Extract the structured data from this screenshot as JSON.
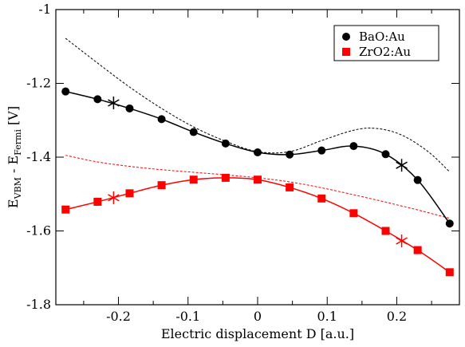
{
  "chart_data": {
    "type": "line",
    "title": "",
    "xlabel": "Electric displacement D [a.u.]",
    "ylabel": {
      "parts": [
        {
          "text": "E",
          "sub": false
        },
        {
          "text": "VBM",
          "sub": true
        },
        {
          "text": " - E",
          "sub": false
        },
        {
          "text": "Fermi",
          "sub": true
        },
        {
          "text": " [V]",
          "sub": false
        }
      ]
    },
    "xlim": [
      -0.29,
      0.29
    ],
    "ylim": [
      -1.8,
      -1.0
    ],
    "xticks": [
      {
        "value": -0.2,
        "label": "-0.2"
      },
      {
        "value": -0.1,
        "label": "-0.1"
      },
      {
        "value": 0,
        "label": "0"
      },
      {
        "value": 0.1,
        "label": "0.1"
      },
      {
        "value": 0.2,
        "label": "0.2"
      }
    ],
    "yticks": [
      {
        "value": -1.8,
        "label": "-1.8"
      },
      {
        "value": -1.6,
        "label": "-1.6"
      },
      {
        "value": -1.4,
        "label": "-1.4"
      },
      {
        "value": -1.2,
        "label": "-1.2"
      },
      {
        "value": -1.0,
        "label": "-1"
      }
    ],
    "grid": false,
    "legend_position": "top-right",
    "series": [
      {
        "name": "BaO:Au",
        "color": "#000000",
        "marker": "circle",
        "points": [
          [
            -0.276,
            -1.222
          ],
          [
            -0.23,
            -1.243
          ],
          [
            -0.184,
            -1.268
          ],
          [
            -0.138,
            -1.297
          ],
          [
            -0.092,
            -1.332
          ],
          [
            -0.046,
            -1.363
          ],
          [
            0.0,
            -1.387
          ],
          [
            0.046,
            -1.393
          ],
          [
            0.092,
            -1.382
          ],
          [
            0.138,
            -1.37
          ],
          [
            0.184,
            -1.392
          ],
          [
            0.23,
            -1.462
          ],
          [
            0.276,
            -1.58
          ]
        ],
        "star_points": [
          [
            -0.207,
            -1.253
          ],
          [
            0.207,
            -1.422
          ]
        ],
        "dashed_curve": [
          [
            -0.276,
            -1.078
          ],
          [
            -0.23,
            -1.145
          ],
          [
            -0.184,
            -1.21
          ],
          [
            -0.138,
            -1.268
          ],
          [
            -0.092,
            -1.318
          ],
          [
            -0.046,
            -1.357
          ],
          [
            0.0,
            -1.385
          ],
          [
            0.046,
            -1.385
          ],
          [
            0.092,
            -1.355
          ],
          [
            0.138,
            -1.327
          ],
          [
            0.17,
            -1.322
          ],
          [
            0.207,
            -1.34
          ],
          [
            0.245,
            -1.385
          ],
          [
            0.276,
            -1.44
          ]
        ]
      },
      {
        "name": "ZrO2:Au",
        "color": "#ff0000",
        "marker": "square",
        "points": [
          [
            -0.276,
            -1.542
          ],
          [
            -0.23,
            -1.521
          ],
          [
            -0.184,
            -1.498
          ],
          [
            -0.138,
            -1.476
          ],
          [
            -0.092,
            -1.461
          ],
          [
            -0.046,
            -1.456
          ],
          [
            0.0,
            -1.461
          ],
          [
            0.046,
            -1.482
          ],
          [
            0.092,
            -1.512
          ],
          [
            0.138,
            -1.552
          ],
          [
            0.184,
            -1.6
          ],
          [
            0.23,
            -1.652
          ],
          [
            0.276,
            -1.712
          ]
        ],
        "star_points": [
          [
            -0.207,
            -1.51
          ],
          [
            0.207,
            -1.627
          ]
        ],
        "dashed_curve": [
          [
            -0.276,
            -1.395
          ],
          [
            -0.23,
            -1.413
          ],
          [
            -0.184,
            -1.425
          ],
          [
            -0.138,
            -1.434
          ],
          [
            -0.092,
            -1.441
          ],
          [
            -0.046,
            -1.448
          ],
          [
            0.0,
            -1.456
          ],
          [
            0.046,
            -1.467
          ],
          [
            0.092,
            -1.483
          ],
          [
            0.138,
            -1.502
          ],
          [
            0.184,
            -1.522
          ],
          [
            0.23,
            -1.543
          ],
          [
            0.276,
            -1.566
          ]
        ]
      }
    ]
  }
}
